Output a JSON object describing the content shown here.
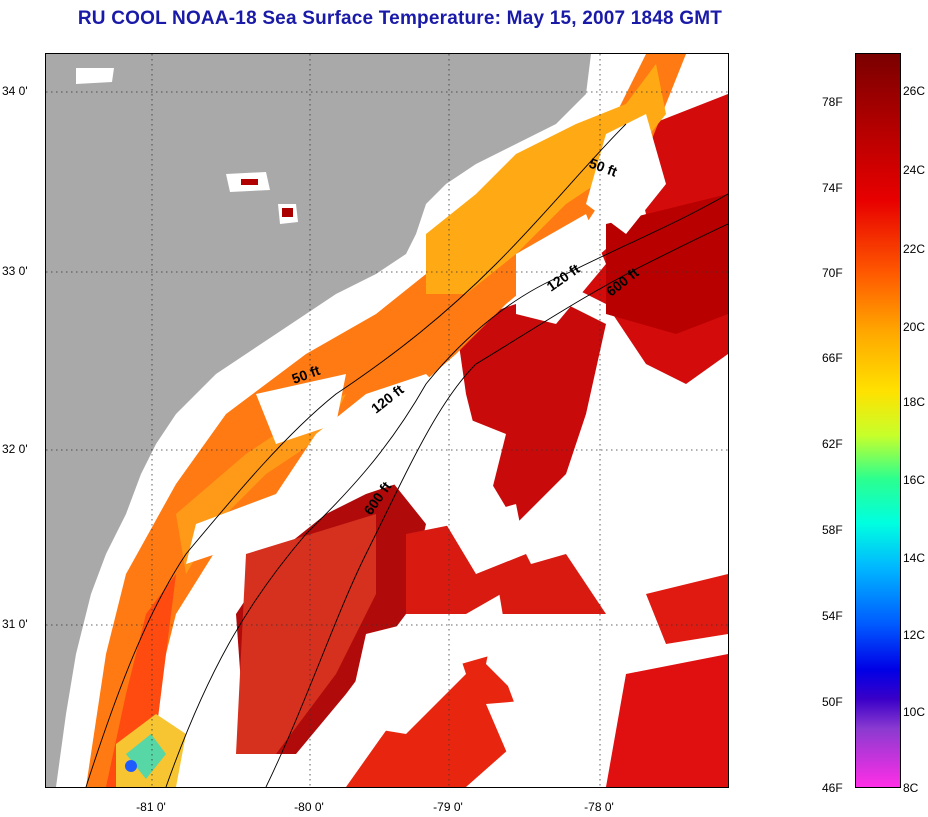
{
  "title": "RU COOL  NOAA-18  Sea Surface Temperature:  May 15, 2007 1848 GMT",
  "map": {
    "lat_labels": [
      "34 0'",
      "33 0'",
      "32 0'",
      "31 0'"
    ],
    "lon_labels": [
      "-81 0'",
      "-80 0'",
      "-79 0'",
      "-78 0'"
    ],
    "isobath_labels": [
      "50 ft",
      "120 ft",
      "600 ft",
      "50 ft",
      "120 ft",
      "600 ft"
    ]
  },
  "colorbar": {
    "fahrenheit": [
      "78F",
      "74F",
      "70F",
      "66F",
      "62F",
      "58F",
      "54F",
      "50F",
      "46F"
    ],
    "celsius": [
      "26C",
      "24C",
      "22C",
      "20C",
      "18C",
      "16C",
      "14C",
      "12C",
      "10C",
      "8C"
    ]
  },
  "colors": {
    "land": "#a9a9a9",
    "cloud": "#ffffff",
    "title": "#1a1aa8"
  }
}
